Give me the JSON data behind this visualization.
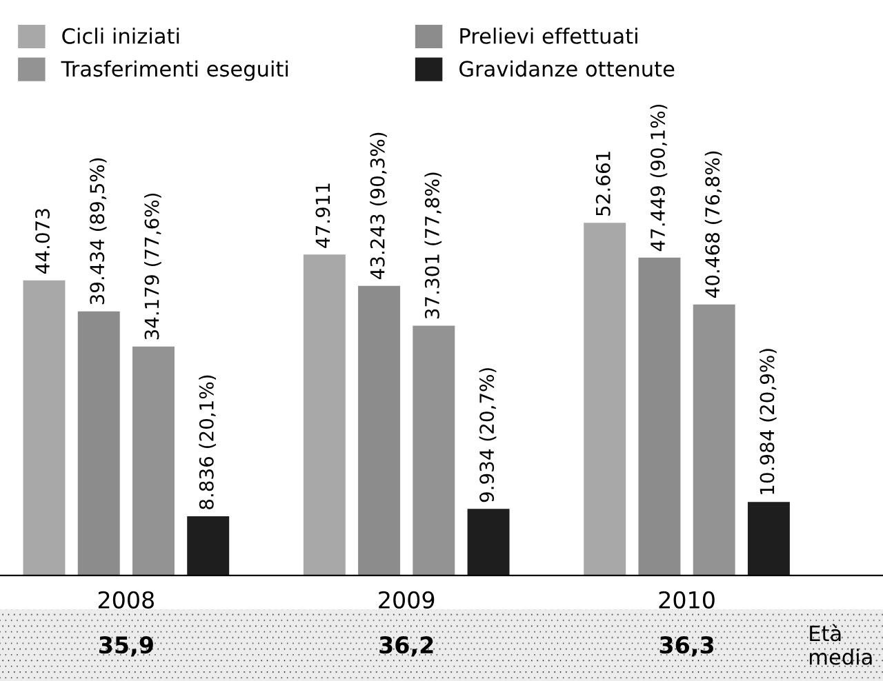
{
  "chart_data": {
    "type": "bar",
    "categories": [
      "2008",
      "2009",
      "2010"
    ],
    "series": [
      {
        "name": "Cicli iniziati",
        "color": "#a8a8a8",
        "values": [
          44073,
          47911,
          52661
        ],
        "value_labels": [
          "44.073",
          "47.911",
          "52.661"
        ]
      },
      {
        "name": "Prelievi effettuati",
        "color": "#8c8c8c",
        "values": [
          39434,
          43243,
          47449
        ],
        "value_labels": [
          "39.434 (89,5%)",
          "43.243 (90,3%)",
          "47.449 (90,1%)"
        ]
      },
      {
        "name": "Trasferimenti eseguiti",
        "color": "#939393",
        "values": [
          34179,
          37301,
          40468
        ],
        "value_labels": [
          "34.179 (77,6%)",
          "37.301 (77,8%)",
          "40.468 (76,8%)"
        ]
      },
      {
        "name": "Gravidanze ottenute",
        "color": "#1e1e1e",
        "values": [
          8836,
          9934,
          10984
        ],
        "value_labels": [
          "8.836 (20,1%)",
          "9.934 (20,7%)",
          "10.984 (20,9%)"
        ]
      }
    ],
    "annotations": [
      "35,9",
      "36,2",
      "36,3",
      "Età media"
    ],
    "legend": "top left",
    "grid": false
  }
}
